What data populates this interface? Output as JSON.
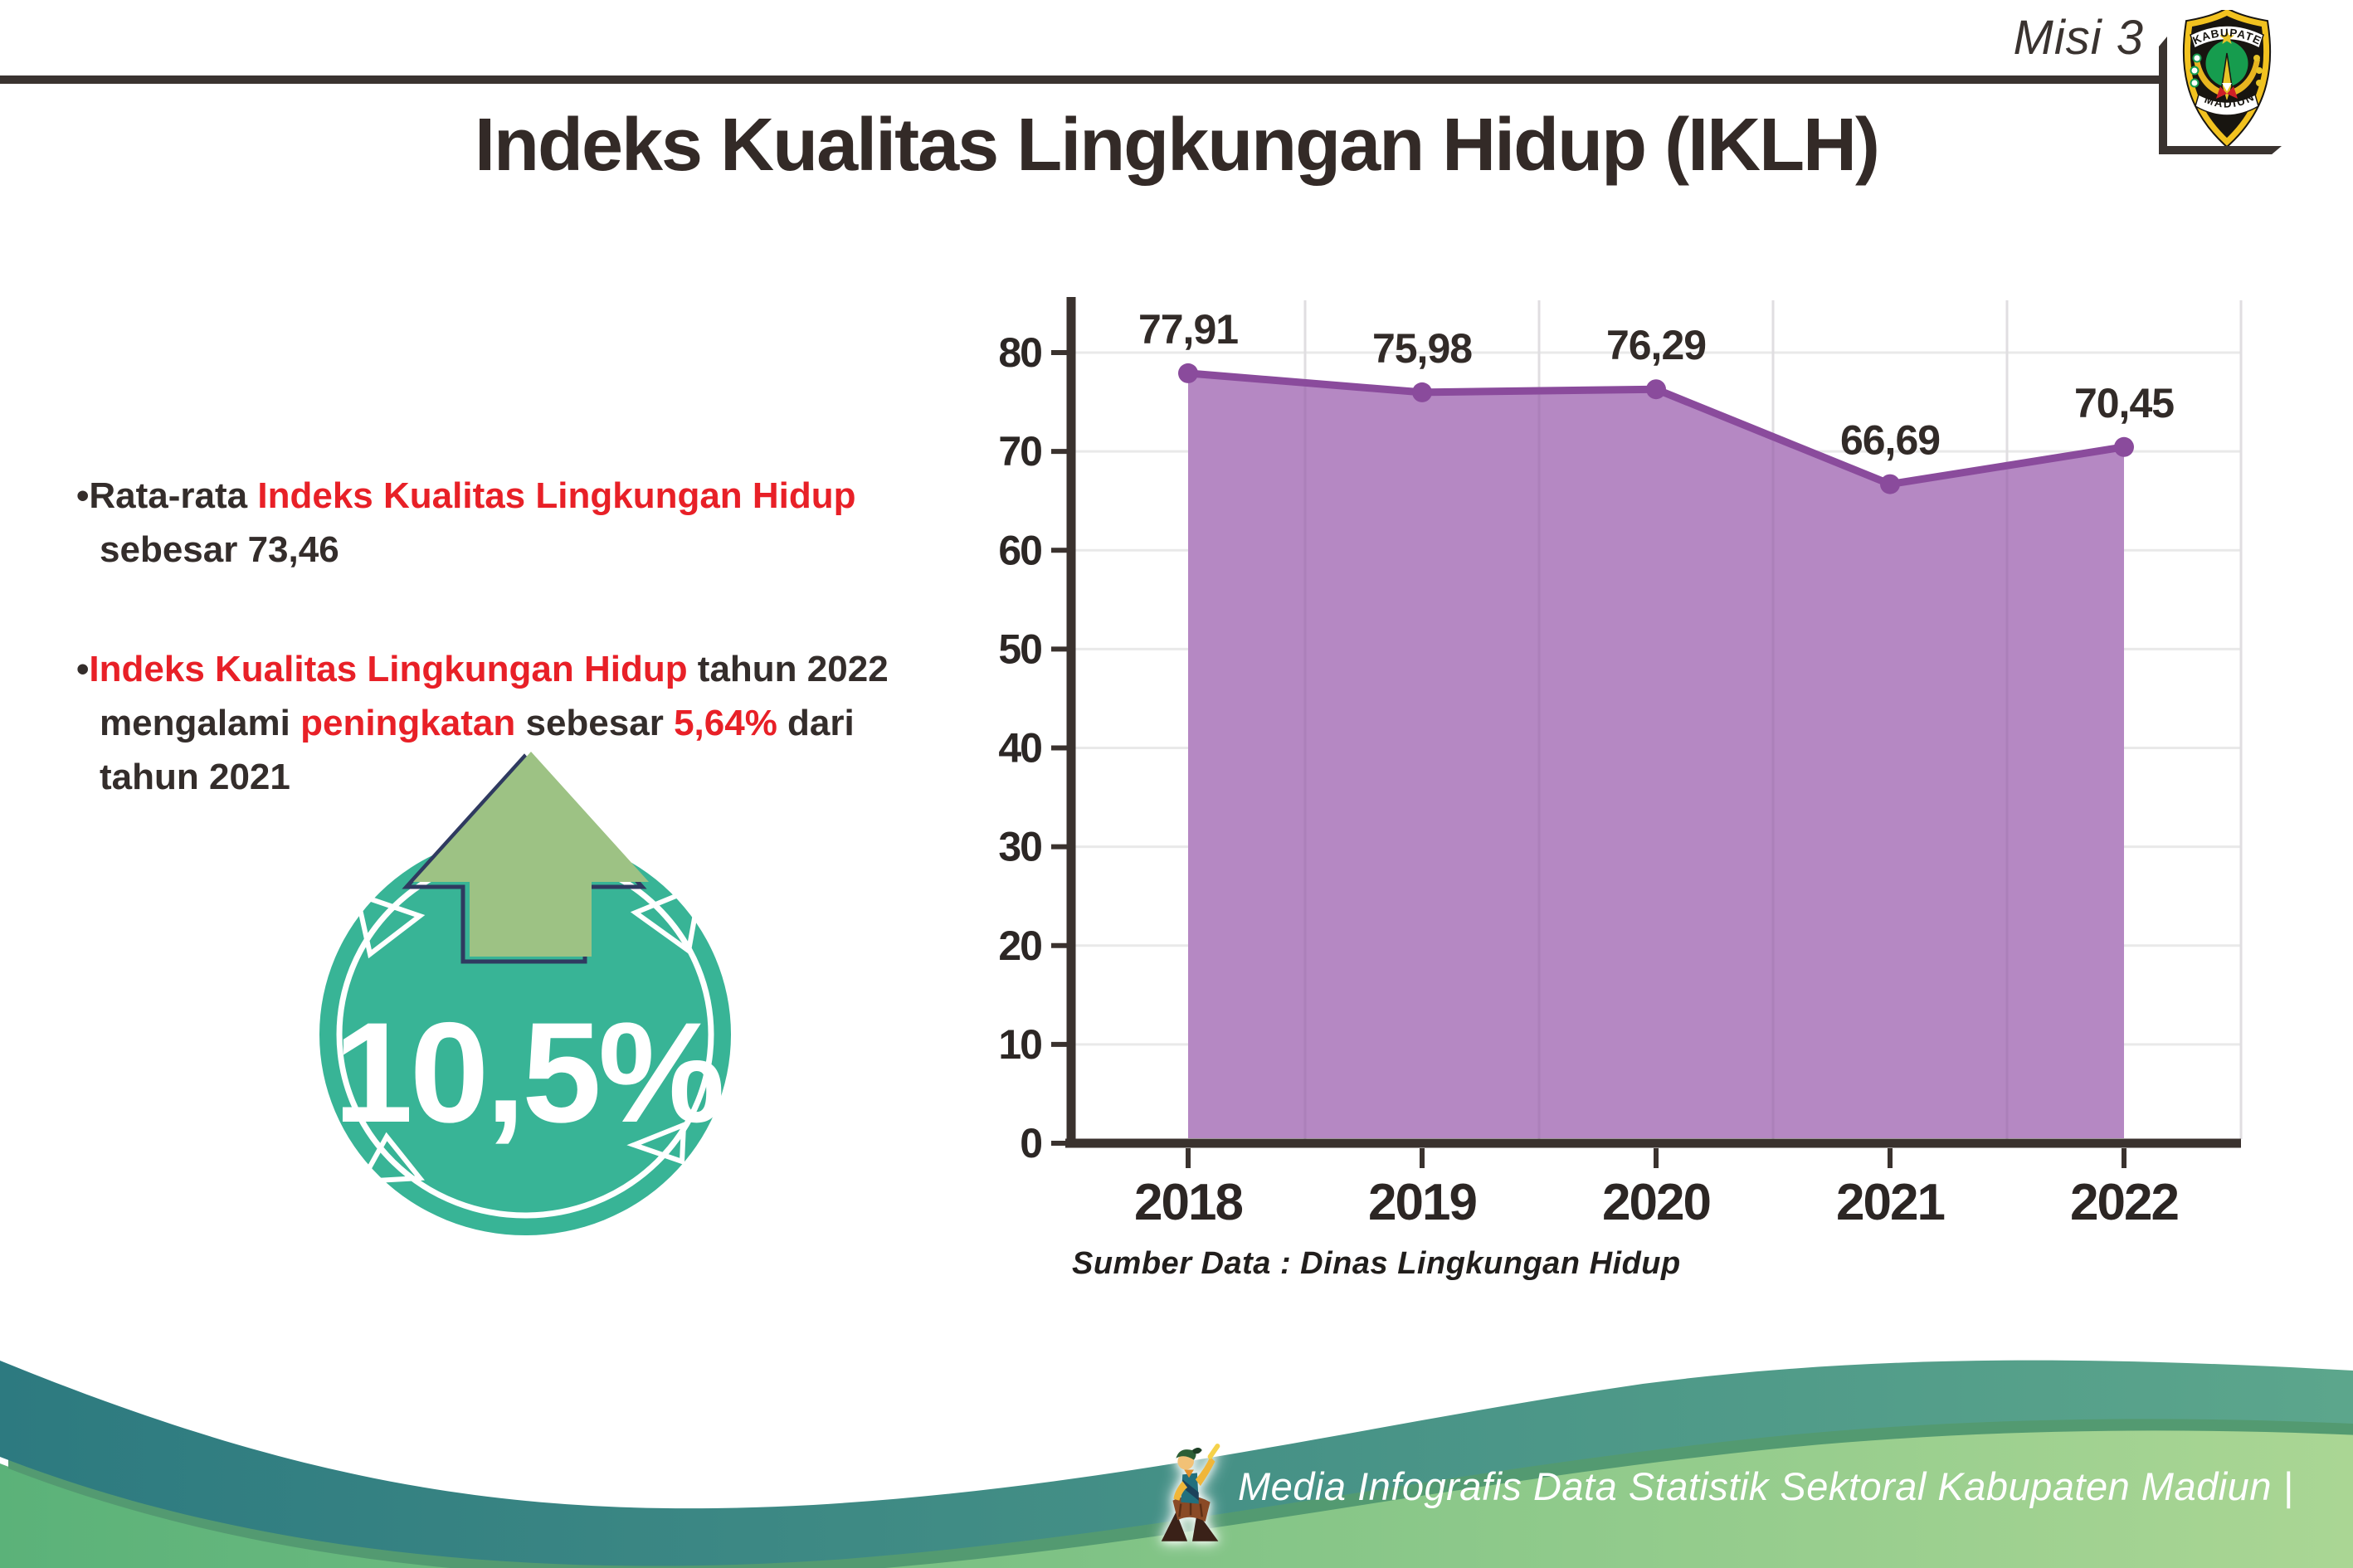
{
  "header": {
    "misi": "Misi 3",
    "title": "Indeks Kualitas Lingkungan Hidup (IKLH)"
  },
  "logo": {
    "top": "KABUPATEN",
    "bottom": "MADIUN"
  },
  "bullets": [
    {
      "segments": [
        {
          "text": "Rata-rata ",
          "color": "dark"
        },
        {
          "text": "Indeks Kualitas Lingkungan Hidup",
          "color": "red"
        },
        {
          "text": " sebesar 73,46",
          "color": "dark"
        }
      ]
    },
    {
      "segments": [
        {
          "text": "Indeks Kualitas Lingkungan Hidup",
          "color": "red"
        },
        {
          "text": " tahun 2022 mengalami ",
          "color": "dark"
        },
        {
          "text": "peningkatan",
          "color": "red"
        },
        {
          "text": " sebesar ",
          "color": "dark"
        },
        {
          "text": "5,64%",
          "color": "red"
        },
        {
          "text": " dari tahun 2021",
          "color": "dark"
        }
      ]
    }
  ],
  "badge": {
    "value": "10,5%",
    "direction": "up-arrow"
  },
  "chart_data": {
    "type": "area",
    "title": "",
    "categories": [
      "2018",
      "2019",
      "2020",
      "2021",
      "2022"
    ],
    "values": [
      77.91,
      75.98,
      76.29,
      66.69,
      70.45
    ],
    "value_labels": [
      "77,91",
      "75,98",
      "76,29",
      "66,69",
      "70,45"
    ],
    "xlabel": "",
    "ylabel": "",
    "ylim": [
      0,
      80
    ],
    "ytick_step": 10,
    "grid": true,
    "legend": "none",
    "source_note": "Sumber Data : Dinas Lingkungan Hidup"
  },
  "footer": {
    "text": "Media Infografis Data Statistik Sektoral Kabupaten Madiun |"
  },
  "colors": {
    "red": "#e82027",
    "dark": "#342d2b",
    "line_purple": "#8a4b9c",
    "area_purple": "#b588c3",
    "axis_dark": "#3a322e",
    "grid_gray": "#e9e9e9",
    "teal_badge": "#38b496",
    "arrow_green": "#9dc284",
    "arrow_outline_navy": "#2f3a60",
    "footer_teal_dark": "#2d7a80",
    "footer_teal_light": "#5ca68c",
    "footer_green_dark": "#5bb279",
    "footer_green_light": "#aad694"
  }
}
